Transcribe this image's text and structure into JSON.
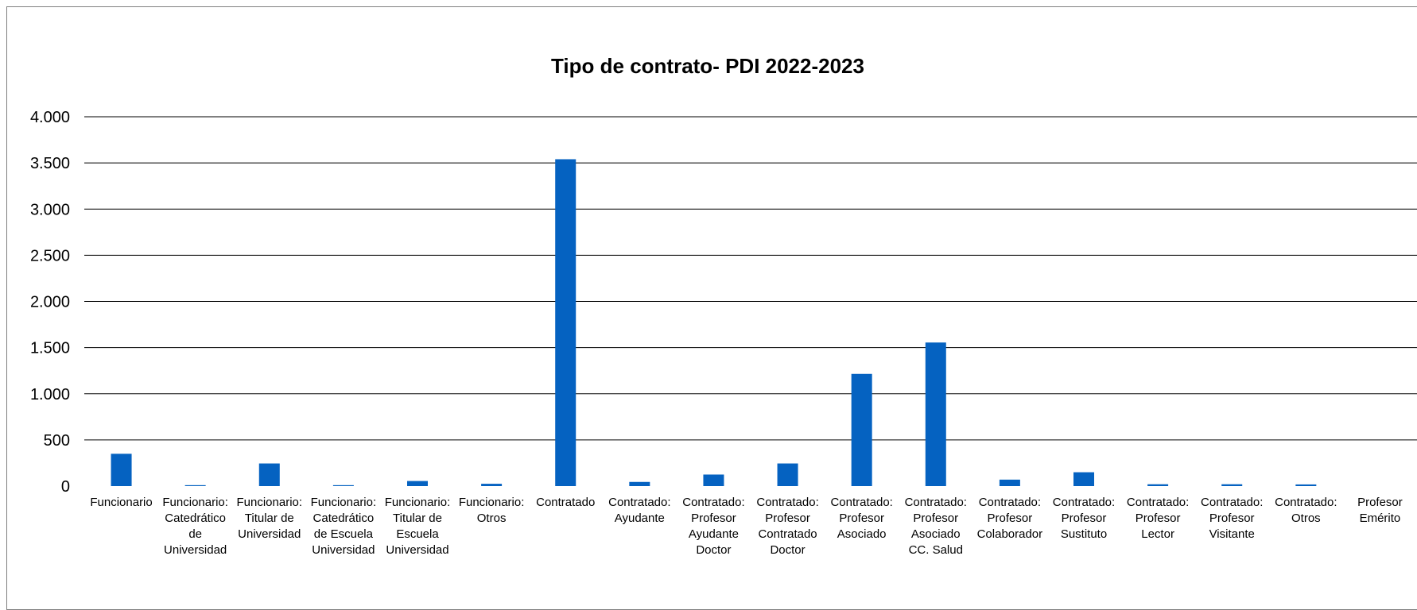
{
  "chart_data": {
    "type": "bar",
    "title": "Tipo de contrato- PDI 2022-2023",
    "xlabel": "",
    "ylabel": "",
    "ylim": [
      0,
      4000
    ],
    "yticks": [
      0,
      500,
      1000,
      1500,
      2000,
      2500,
      3000,
      3500,
      4000
    ],
    "ytick_labels": [
      "0",
      "500",
      "1.000",
      "1.500",
      "2.000",
      "2.500",
      "3.000",
      "3.500",
      "4.000"
    ],
    "grid": true,
    "legend": "none",
    "bar_color": "#0562c1",
    "categories": [
      [
        "Funcionario"
      ],
      [
        "Funcionario:",
        "Catedrático",
        "de",
        "Universidad"
      ],
      [
        "Funcionario:",
        "Titular de",
        "Universidad"
      ],
      [
        "Funcionario:",
        "Catedrático",
        "de Escuela",
        "Universidad"
      ],
      [
        "Funcionario:",
        "Titular de",
        "Escuela",
        "Universidad"
      ],
      [
        "Funcionario:",
        "Otros"
      ],
      [
        "Contratado"
      ],
      [
        "Contratado:",
        "Ayudante"
      ],
      [
        "Contratado:",
        "Profesor",
        "Ayudante",
        "Doctor"
      ],
      [
        "Contratado:",
        "Profesor",
        "Contratado",
        "Doctor"
      ],
      [
        "Contratado:",
        "Profesor",
        "Asociado"
      ],
      [
        "Contratado:",
        "Profesor",
        "Asociado",
        "CC. Salud"
      ],
      [
        "Contratado:",
        "Profesor",
        "Colaborador"
      ],
      [
        "Contratado:",
        "Profesor",
        "Sustituto"
      ],
      [
        "Contratado:",
        "Profesor",
        "Lector"
      ],
      [
        "Contratado:",
        "Profesor",
        "Visitante"
      ],
      [
        "Contratado:",
        "Otros"
      ],
      [
        "Profesor",
        "Emérito"
      ]
    ],
    "values": [
      350,
      10,
      245,
      10,
      55,
      25,
      3540,
      45,
      125,
      245,
      1215,
      1555,
      70,
      150,
      20,
      20,
      18,
      0
    ]
  }
}
